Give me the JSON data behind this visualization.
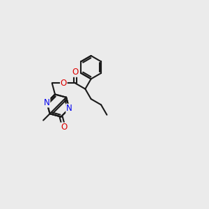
{
  "bg_color": "#ebebeb",
  "bond_color": "#1a1a1a",
  "nitrogen_color": "#0000ee",
  "oxygen_color": "#dd0000",
  "lw": 1.5,
  "fs": 8.5,
  "figsize": [
    3.0,
    3.0
  ],
  "dpi": 100,
  "BL": 0.072
}
